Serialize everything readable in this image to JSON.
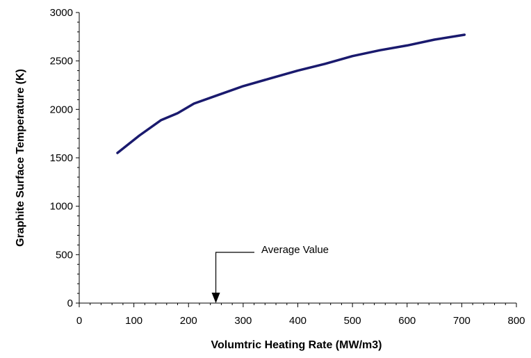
{
  "chart_data": {
    "type": "line",
    "title": "",
    "xlabel": "Volumtric Heating Rate (MW/m3)",
    "ylabel": "Graphite Surface Temperature (K)",
    "xlim": [
      0,
      800
    ],
    "ylim": [
      0,
      3000
    ],
    "xticks": [
      0,
      100,
      200,
      300,
      400,
      500,
      600,
      700,
      800
    ],
    "yticks": [
      0,
      500,
      1000,
      1500,
      2000,
      2500,
      3000
    ],
    "xtick_labels": [
      "0",
      "100",
      "200",
      "300",
      "400",
      "500",
      "600",
      "700",
      "800"
    ],
    "ytick_labels": [
      "0",
      "500",
      "1000",
      "1500",
      "2000",
      "2500",
      "3000"
    ],
    "grid": false,
    "legend": "none",
    "series": [
      {
        "color": "#1a1a6e",
        "x": [
          70,
          110,
          150,
          180,
          210,
          250,
          300,
          350,
          400,
          450,
          500,
          550,
          600,
          650,
          705
        ],
        "y": [
          1550,
          1730,
          1890,
          1960,
          2060,
          2140,
          2240,
          2320,
          2400,
          2470,
          2550,
          2610,
          2660,
          2720,
          2770
        ]
      }
    ],
    "annotations": [
      {
        "text": "Average Value",
        "arrow_x": 250,
        "arrow_y": 0
      }
    ]
  }
}
